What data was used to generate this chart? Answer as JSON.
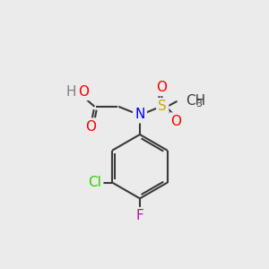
{
  "background_color": "#ebebeb",
  "bond_color": "#3a3a3a",
  "bond_width": 1.5,
  "atom_colors": {
    "O": "#ff0000",
    "N": "#0000ff",
    "S": "#ccaa00",
    "Cl": "#33cc00",
    "F": "#cc00cc",
    "H": "#808080",
    "C": "#3a3a3a"
  },
  "font_size": 11,
  "font_size_ch3": 9
}
